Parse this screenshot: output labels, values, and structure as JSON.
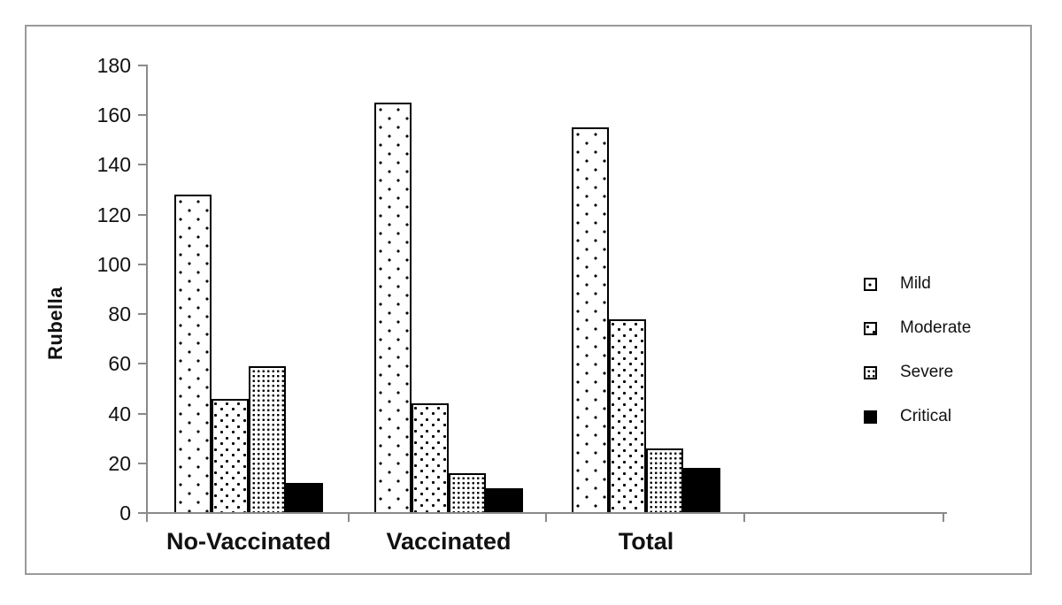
{
  "chart_data": {
    "type": "bar",
    "title": "",
    "ylabel": "Rubella",
    "xlabel": "",
    "categories": [
      "No-Vaccinated",
      "Vaccinated",
      "Total"
    ],
    "series": [
      {
        "name": "Mild",
        "pattern": "dots-sparse",
        "values": [
          128,
          165,
          155
        ]
      },
      {
        "name": "Moderate",
        "pattern": "dots-medium",
        "values": [
          46,
          44,
          78
        ]
      },
      {
        "name": "Severe",
        "pattern": "dots-dense",
        "values": [
          59,
          16,
          26
        ]
      },
      {
        "name": "Critical",
        "pattern": "solid",
        "values": [
          12,
          10,
          18
        ]
      }
    ],
    "ylim": [
      0,
      180
    ],
    "yticks": [
      0,
      20,
      40,
      60,
      80,
      100,
      120,
      140,
      160,
      180
    ],
    "legend": [
      "Mild",
      "Moderate",
      "Severe",
      "Critical"
    ],
    "legend_position": "right",
    "grid": false,
    "colors": {
      "bar_fill": "#ffffff",
      "bar_outline": "#000000",
      "solid_fill": "#000000",
      "axis": "#8a8a8a",
      "frame_border": "#9a9a9a",
      "text": "#111111",
      "background": "#ffffff"
    }
  }
}
